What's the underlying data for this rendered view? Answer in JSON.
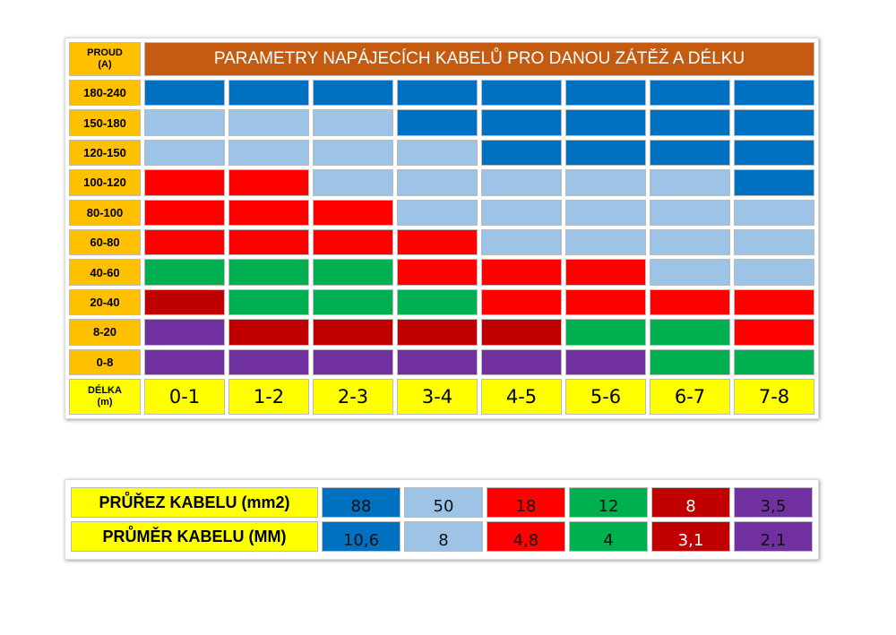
{
  "table": {
    "corner": {
      "line1": "PROUD",
      "line2": "(A)"
    },
    "title": "PARAMETRY NAPÁJECÍCH KABELŮ PRO DANOU ZÁTĚŽ A DÉLKU",
    "rows": [
      {
        "label": "180-240",
        "colors": [
          "#0070c0",
          "#0070c0",
          "#0070c0",
          "#0070c0",
          "#0070c0",
          "#0070c0",
          "#0070c0",
          "#0070c0"
        ]
      },
      {
        "label": "150-180",
        "colors": [
          "#9dc3e6",
          "#9dc3e6",
          "#9dc3e6",
          "#0070c0",
          "#0070c0",
          "#0070c0",
          "#0070c0",
          "#0070c0"
        ]
      },
      {
        "label": "120-150",
        "colors": [
          "#9dc3e6",
          "#9dc3e6",
          "#9dc3e6",
          "#9dc3e6",
          "#0070c0",
          "#0070c0",
          "#0070c0",
          "#0070c0"
        ]
      },
      {
        "label": "100-120",
        "colors": [
          "#ff0000",
          "#ff0000",
          "#9dc3e6",
          "#9dc3e6",
          "#9dc3e6",
          "#9dc3e6",
          "#9dc3e6",
          "#0070c0"
        ]
      },
      {
        "label": "80-100",
        "colors": [
          "#ff0000",
          "#ff0000",
          "#ff0000",
          "#9dc3e6",
          "#9dc3e6",
          "#9dc3e6",
          "#9dc3e6",
          "#9dc3e6"
        ]
      },
      {
        "label": "60-80",
        "colors": [
          "#ff0000",
          "#ff0000",
          "#ff0000",
          "#ff0000",
          "#9dc3e6",
          "#9dc3e6",
          "#9dc3e6",
          "#9dc3e6"
        ]
      },
      {
        "label": "40-60",
        "colors": [
          "#00b050",
          "#00b050",
          "#00b050",
          "#ff0000",
          "#ff0000",
          "#ff0000",
          "#9dc3e6",
          "#9dc3e6"
        ]
      },
      {
        "label": "20-40",
        "colors": [
          "#c00000",
          "#00b050",
          "#00b050",
          "#00b050",
          "#ff0000",
          "#ff0000",
          "#ff0000",
          "#ff0000"
        ]
      },
      {
        "label": "8-20",
        "colors": [
          "#7030a0",
          "#c00000",
          "#c00000",
          "#c00000",
          "#c00000",
          "#00b050",
          "#00b050",
          "#ff0000"
        ]
      },
      {
        "label": "0-8",
        "colors": [
          "#7030a0",
          "#7030a0",
          "#7030a0",
          "#7030a0",
          "#7030a0",
          "#7030a0",
          "#00b050",
          "#00b050"
        ]
      }
    ],
    "footer": {
      "line1": "DÉLKA",
      "line2": "(m)",
      "lengths": [
        "0-1",
        "1-2",
        "2-3",
        "3-4",
        "4-5",
        "5-6",
        "6-7",
        "7-8"
      ]
    }
  },
  "legend": {
    "colors": [
      "#0070c0",
      "#9dc3e6",
      "#ff0000",
      "#00b050",
      "#c00000",
      "#7030a0"
    ],
    "rows": [
      {
        "label": "PRŮŘEZ KABELU (mm2)",
        "values": [
          "88",
          "50",
          "18",
          "12",
          "8",
          "3,5"
        ]
      },
      {
        "label": "PRŮMĚR KABELU (MM)",
        "values": [
          "10,6",
          "8",
          "4,8",
          "4",
          "3,1",
          "2,1"
        ]
      }
    ]
  }
}
